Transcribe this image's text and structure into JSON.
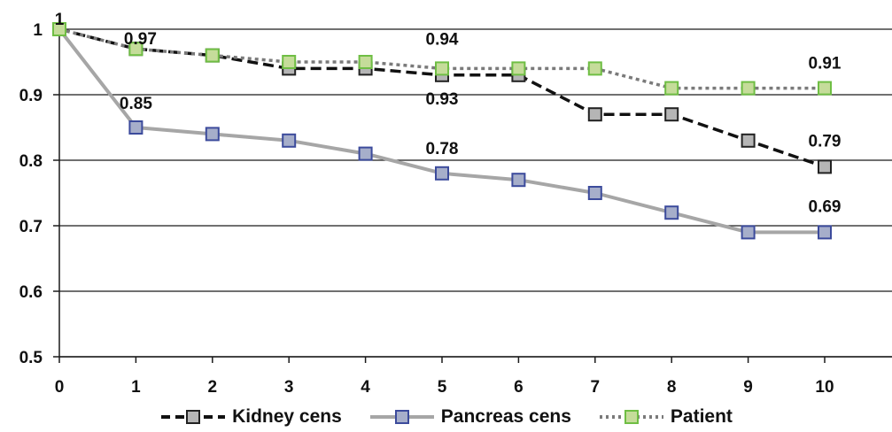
{
  "chart_data": {
    "type": "line",
    "title": "",
    "xlabel": "",
    "ylabel": "",
    "x": [
      0,
      1,
      2,
      3,
      4,
      5,
      6,
      7,
      8,
      9,
      10
    ],
    "x_ticks": [
      "0",
      "1",
      "2",
      "3",
      "4",
      "5",
      "6",
      "7",
      "8",
      "9",
      "10"
    ],
    "y_ticks": [
      "0.5",
      "0.6",
      "0.7",
      "0.8",
      "0.9",
      "1"
    ],
    "ylim": [
      0.5,
      1.0
    ],
    "grid": "horizontal",
    "legend_position": "bottom",
    "series": [
      {
        "name": "Kidney cens",
        "values": [
          1.0,
          0.97,
          0.96,
          0.94,
          0.94,
          0.93,
          0.93,
          0.87,
          0.87,
          0.83,
          0.79
        ],
        "line_color": "#111111",
        "line_style": "dashed",
        "marker_color": "#b5b5b5",
        "marker_border": "#222222"
      },
      {
        "name": "Pancreas cens",
        "values": [
          1.0,
          0.85,
          0.84,
          0.83,
          0.81,
          0.78,
          0.77,
          0.75,
          0.72,
          0.69,
          0.69
        ],
        "line_color": "#a6a6a6",
        "line_style": "solid",
        "marker_color": "#a6aeca",
        "marker_border": "#3c4b9c"
      },
      {
        "name": "Patient",
        "values": [
          1.0,
          0.97,
          0.96,
          0.95,
          0.95,
          0.94,
          0.94,
          0.94,
          0.91,
          0.91,
          0.91
        ],
        "line_color": "#7a7a7a",
        "line_style": "dotted",
        "marker_color": "#c5dc9a",
        "marker_border": "#6fbe44"
      }
    ],
    "annotations": [
      {
        "text": "1",
        "x": 0,
        "y": 1.0
      },
      {
        "text": "0.97",
        "x": 1,
        "y": 0.97
      },
      {
        "text": "0.85",
        "x": 1,
        "y": 0.85
      },
      {
        "text": "0.94",
        "x": 5,
        "y": 0.94
      },
      {
        "text": "0.93",
        "x": 5,
        "y": 0.93
      },
      {
        "text": "0.78",
        "x": 5,
        "y": 0.78
      },
      {
        "text": "0.91",
        "x": 10,
        "y": 0.91
      },
      {
        "text": "0.79",
        "x": 10,
        "y": 0.79
      },
      {
        "text": "0.69",
        "x": 10,
        "y": 0.69
      }
    ]
  }
}
